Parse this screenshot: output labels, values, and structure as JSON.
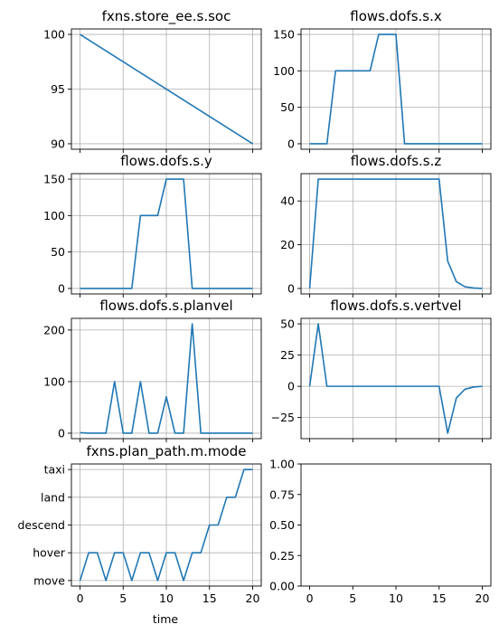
{
  "figure": {
    "xlabel": "time"
  },
  "colors": {
    "line": "#1f77b4",
    "grid": "#b0b0b0",
    "axes": "#000000"
  },
  "chart_data": [
    {
      "type": "line",
      "title": "fxns.store_ee.s.soc",
      "x": [
        0,
        20
      ],
      "y": [
        100,
        90
      ],
      "xlim": [
        -1,
        21
      ],
      "ylim": [
        89.5,
        100.5
      ],
      "xticks": [
        0,
        5,
        10,
        15,
        20
      ],
      "xticklabels_visible": false,
      "yticks": [
        90,
        95,
        100
      ],
      "yticklabels": [
        "90",
        "95",
        "100"
      ],
      "grid": true
    },
    {
      "type": "line",
      "title": "flows.dofs.s.x",
      "x": [
        0,
        1,
        2,
        3,
        4,
        5,
        6,
        7,
        8,
        9,
        10,
        11,
        12,
        13,
        14,
        15,
        16,
        17,
        18,
        19,
        20
      ],
      "y": [
        0,
        0,
        0,
        100,
        100,
        100,
        100,
        100,
        150,
        150,
        150,
        0,
        0,
        0,
        0,
        0,
        0,
        0,
        0,
        0,
        0
      ],
      "xlim": [
        -1,
        21
      ],
      "ylim": [
        -7.5,
        157.5
      ],
      "xticks": [
        0,
        5,
        10,
        15,
        20
      ],
      "xticklabels_visible": false,
      "yticks": [
        0,
        50,
        100,
        150
      ],
      "yticklabels": [
        "0",
        "50",
        "100",
        "150"
      ],
      "grid": true
    },
    {
      "type": "line",
      "title": "flows.dofs.s.y",
      "x": [
        0,
        1,
        2,
        3,
        4,
        5,
        6,
        7,
        8,
        9,
        10,
        11,
        12,
        13,
        14,
        15,
        16,
        17,
        18,
        19,
        20
      ],
      "y": [
        0,
        0,
        0,
        0,
        0,
        0,
        0,
        100,
        100,
        100,
        150,
        150,
        150,
        0,
        0,
        0,
        0,
        0,
        0,
        0,
        0
      ],
      "xlim": [
        -1,
        21
      ],
      "ylim": [
        -7.5,
        157.5
      ],
      "xticks": [
        0,
        5,
        10,
        15,
        20
      ],
      "xticklabels_visible": false,
      "yticks": [
        0,
        50,
        100,
        150
      ],
      "yticklabels": [
        "0",
        "50",
        "100",
        "150"
      ],
      "grid": true
    },
    {
      "type": "line",
      "title": "flows.dofs.s.z",
      "x": [
        0,
        1,
        2,
        3,
        4,
        5,
        6,
        7,
        8,
        9,
        10,
        11,
        12,
        13,
        14,
        15,
        16,
        17,
        18,
        19,
        20
      ],
      "y": [
        0,
        50,
        50,
        50,
        50,
        50,
        50,
        50,
        50,
        50,
        50,
        50,
        50,
        50,
        50,
        50,
        12.5,
        3.1,
        0.8,
        0.2,
        0
      ],
      "xlim": [
        -1,
        21
      ],
      "ylim": [
        -2.5,
        52.5
      ],
      "xticks": [
        0,
        5,
        10,
        15,
        20
      ],
      "xticklabels_visible": false,
      "yticks": [
        0,
        20,
        40
      ],
      "yticklabels": [
        "0",
        "20",
        "40"
      ],
      "grid": true
    },
    {
      "type": "line",
      "title": "flows.dofs.s.planvel",
      "x": [
        0,
        1,
        2,
        3,
        4,
        5,
        6,
        7,
        8,
        9,
        10,
        11,
        12,
        13,
        14,
        15,
        16,
        17,
        18,
        19,
        20
      ],
      "y": [
        1,
        0,
        0,
        0,
        100,
        0,
        0,
        100,
        0,
        0,
        70.7,
        0,
        0,
        212,
        0,
        0,
        0,
        0,
        0,
        0,
        0
      ],
      "xlim": [
        -1,
        21
      ],
      "ylim": [
        -10.6,
        222.6
      ],
      "xticks": [
        0,
        5,
        10,
        15,
        20
      ],
      "xticklabels_visible": false,
      "yticks": [
        0,
        100,
        200
      ],
      "yticklabels": [
        "0",
        "100",
        "200"
      ],
      "grid": true
    },
    {
      "type": "line",
      "title": "flows.dofs.s.vertvel",
      "x": [
        0,
        1,
        2,
        3,
        4,
        5,
        6,
        7,
        8,
        9,
        10,
        11,
        12,
        13,
        14,
        15,
        16,
        17,
        18,
        19,
        20
      ],
      "y": [
        0,
        50,
        0,
        0,
        0,
        0,
        0,
        0,
        0,
        0,
        0,
        0,
        0,
        0,
        0,
        0,
        -37.5,
        -9.4,
        -2.3,
        -0.6,
        0
      ],
      "xlim": [
        -1,
        21
      ],
      "ylim": [
        -41.9,
        54.4
      ],
      "xticks": [
        0,
        5,
        10,
        15,
        20
      ],
      "xticklabels_visible": false,
      "yticks": [
        -25,
        0,
        25,
        50
      ],
      "yticklabels": [
        "−25",
        "0",
        "25",
        "50"
      ],
      "grid": true
    },
    {
      "type": "line",
      "title": "fxns.plan_path.m.mode",
      "x": [
        0,
        1,
        2,
        3,
        4,
        5,
        6,
        7,
        8,
        9,
        10,
        11,
        12,
        13,
        14,
        15,
        16,
        17,
        18,
        19,
        20
      ],
      "y": [
        0,
        1,
        1,
        0,
        1,
        1,
        0,
        1,
        1,
        0,
        1,
        1,
        0,
        1,
        1,
        2,
        2,
        3,
        3,
        4,
        4
      ],
      "xlim": [
        -1,
        21
      ],
      "ylim": [
        -0.2,
        4.2
      ],
      "xticks": [
        0,
        5,
        10,
        15,
        20
      ],
      "xticklabels": [
        "0",
        "5",
        "10",
        "15",
        "20"
      ],
      "xticklabels_visible": true,
      "yticks": [
        0,
        1,
        2,
        3,
        4
      ],
      "yticklabels": [
        "move",
        "hover",
        "descend",
        "land",
        "taxi"
      ],
      "xlabel": "time",
      "grid": true
    },
    {
      "type": "line",
      "title": "",
      "x": [],
      "y": [],
      "xlim": [
        -1,
        21
      ],
      "ylim": [
        0,
        1
      ],
      "xticks": [
        0,
        5,
        10,
        15,
        20
      ],
      "xticklabels": [
        "0",
        "5",
        "10",
        "15",
        "20"
      ],
      "xticklabels_visible": true,
      "yticks": [
        0,
        0.25,
        0.5,
        0.75,
        1
      ],
      "yticklabels": [
        "0.00",
        "0.25",
        "0.50",
        "0.75",
        "1.00"
      ],
      "grid": false
    }
  ]
}
